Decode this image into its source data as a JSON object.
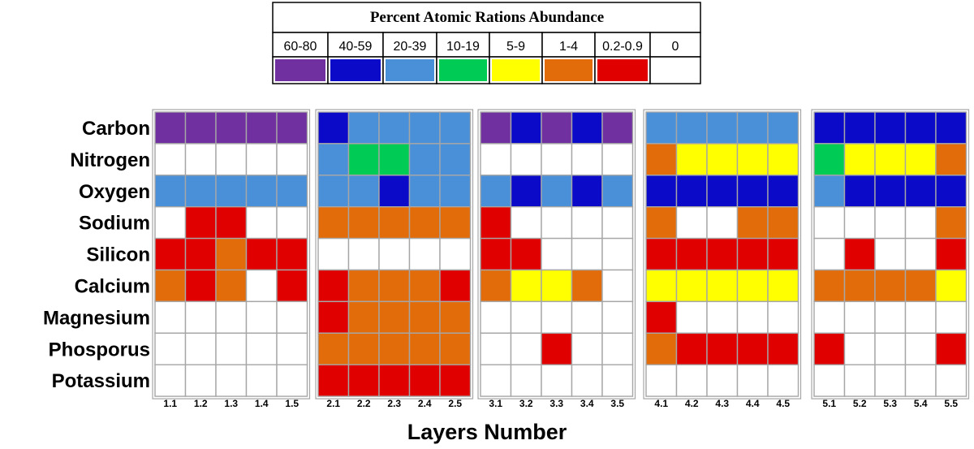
{
  "chart_data": {
    "type": "heatmap",
    "legend": {
      "title": "Percent Atomic Rations Abundance",
      "bins": [
        {
          "label": "60-80",
          "color": "#7030a0",
          "level": 7
        },
        {
          "label": "40-59",
          "color": "#0a0ac8",
          "level": 6
        },
        {
          "label": "20-39",
          "color": "#4a90d9",
          "level": 5
        },
        {
          "label": "10-19",
          "color": "#00cc55",
          "level": 4
        },
        {
          "label": "5-9",
          "color": "#ffff00",
          "level": 3
        },
        {
          "label": "1-4",
          "color": "#e36c0a",
          "level": 2
        },
        {
          "label": "0.2-0.9",
          "color": "#e00000",
          "level": 1
        },
        {
          "label": "0",
          "color": "#ffffff",
          "level": 0
        }
      ]
    },
    "rows": [
      "Carbon",
      "Nitrogen",
      "Oxygen",
      "Sodium",
      "Silicon",
      "Calcium",
      "Magnesium",
      "Phosporus",
      "Potassium"
    ],
    "groups": [
      {
        "columns": [
          "1.1",
          "1.2",
          "1.3",
          "1.4",
          "1.5"
        ],
        "values": [
          [
            7,
            7,
            7,
            7,
            7
          ],
          [
            0,
            0,
            0,
            0,
            0
          ],
          [
            5,
            5,
            5,
            5,
            5
          ],
          [
            0,
            1,
            1,
            0,
            0
          ],
          [
            1,
            1,
            2,
            1,
            1
          ],
          [
            2,
            1,
            2,
            0,
            1
          ],
          [
            0,
            0,
            0,
            0,
            0
          ],
          [
            0,
            0,
            0,
            0,
            0
          ],
          [
            0,
            0,
            0,
            0,
            0
          ]
        ]
      },
      {
        "columns": [
          "2.1",
          "2.2",
          "2.3",
          "2.4",
          "2.5"
        ],
        "values": [
          [
            6,
            5,
            5,
            5,
            5
          ],
          [
            5,
            4,
            4,
            5,
            5
          ],
          [
            5,
            5,
            6,
            5,
            5
          ],
          [
            2,
            2,
            2,
            2,
            2
          ],
          [
            0,
            0,
            0,
            0,
            0
          ],
          [
            1,
            2,
            2,
            2,
            1
          ],
          [
            1,
            2,
            2,
            2,
            2
          ],
          [
            2,
            2,
            2,
            2,
            2
          ],
          [
            1,
            1,
            1,
            1,
            1
          ]
        ]
      },
      {
        "columns": [
          "3.1",
          "3.2",
          "3.3",
          "3.4",
          "3.5"
        ],
        "values": [
          [
            7,
            6,
            7,
            6,
            7
          ],
          [
            0,
            0,
            0,
            0,
            0
          ],
          [
            5,
            6,
            5,
            6,
            5
          ],
          [
            1,
            0,
            0,
            0,
            0
          ],
          [
            1,
            1,
            0,
            0,
            0
          ],
          [
            2,
            3,
            3,
            2,
            0
          ],
          [
            0,
            0,
            0,
            0,
            0
          ],
          [
            0,
            0,
            1,
            0,
            0
          ],
          [
            0,
            0,
            0,
            0,
            0
          ]
        ]
      },
      {
        "columns": [
          "4.1",
          "4.2",
          "4.3",
          "4.4",
          "4.5"
        ],
        "values": [
          [
            5,
            5,
            5,
            5,
            5
          ],
          [
            2,
            3,
            3,
            3,
            3
          ],
          [
            6,
            6,
            6,
            6,
            6
          ],
          [
            2,
            0,
            0,
            2,
            2
          ],
          [
            1,
            1,
            1,
            1,
            1
          ],
          [
            3,
            3,
            3,
            3,
            3
          ],
          [
            1,
            0,
            0,
            0,
            0
          ],
          [
            2,
            1,
            1,
            1,
            1
          ],
          [
            0,
            0,
            0,
            0,
            0
          ]
        ]
      },
      {
        "columns": [
          "5.1",
          "5.2",
          "5.3",
          "5.4",
          "5.5"
        ],
        "values": [
          [
            6,
            6,
            6,
            6,
            6
          ],
          [
            4,
            3,
            3,
            3,
            2
          ],
          [
            5,
            6,
            6,
            6,
            6
          ],
          [
            0,
            0,
            0,
            0,
            2
          ],
          [
            0,
            1,
            0,
            0,
            1
          ],
          [
            2,
            2,
            2,
            2,
            3
          ],
          [
            0,
            0,
            0,
            0,
            0
          ],
          [
            1,
            0,
            0,
            0,
            1
          ],
          [
            0,
            0,
            0,
            0,
            0
          ]
        ]
      }
    ],
    "xlabel": "Layers Number",
    "grid_color": "#a6a6a6"
  }
}
